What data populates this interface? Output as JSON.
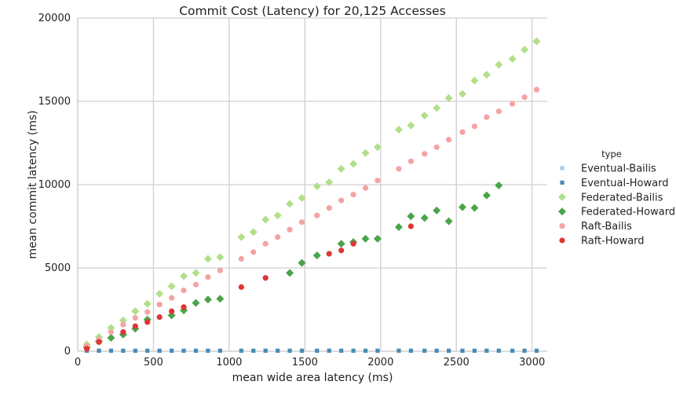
{
  "chart_data": {
    "type": "scatter",
    "title": "Commit Cost (Latency) for 20,125 Accesses",
    "xlabel": "mean wide area latency (ms)",
    "ylabel": "mean commit latency (ms)",
    "xlim": [
      0,
      3100
    ],
    "ylim": [
      0,
      20000
    ],
    "xticks": [
      0,
      500,
      1000,
      1500,
      2000,
      2500,
      3000
    ],
    "yticks": [
      0,
      5000,
      10000,
      15000,
      20000
    ],
    "xtick_labels": [
      "0",
      "500",
      "1000",
      "1500",
      "2000",
      "2500",
      "3000"
    ],
    "ytick_labels": [
      "0",
      "5000",
      "10000",
      "15000",
      "20000"
    ],
    "grid": true,
    "legend_title": "type",
    "legend_position": "right",
    "series": [
      {
        "name": "Eventual-Bailis",
        "color": "#a6cee3",
        "marker": "square",
        "x": [
          60,
          140,
          220,
          300,
          380,
          460,
          540,
          620,
          700,
          780,
          860,
          940,
          1080,
          1160,
          1240,
          1320,
          1400,
          1480,
          1580,
          1660,
          1740,
          1820,
          1900,
          1980,
          2120,
          2200,
          2290,
          2370,
          2450,
          2540,
          2620,
          2700,
          2780,
          2870,
          2950,
          3030
        ],
        "y": [
          30,
          30,
          30,
          30,
          30,
          30,
          30,
          30,
          30,
          30,
          30,
          30,
          30,
          30,
          30,
          30,
          30,
          30,
          30,
          30,
          30,
          30,
          30,
          30,
          30,
          30,
          30,
          30,
          30,
          30,
          30,
          30,
          30,
          30,
          30,
          30
        ]
      },
      {
        "name": "Eventual-Howard",
        "color": "#4a8cb5",
        "marker": "square",
        "x": [
          60,
          140,
          220,
          300,
          380,
          460,
          540,
          620,
          700,
          780,
          860,
          940,
          1080,
          1160,
          1240,
          1320,
          1400,
          1480,
          1580,
          1660,
          1740,
          1820,
          1900,
          1980,
          2120,
          2200,
          2290,
          2370,
          2450,
          2540,
          2620,
          2700,
          2780,
          2870,
          2950,
          3030
        ],
        "y": [
          30,
          30,
          30,
          30,
          30,
          30,
          30,
          30,
          30,
          30,
          30,
          30,
          30,
          30,
          30,
          30,
          30,
          30,
          30,
          30,
          30,
          30,
          30,
          30,
          30,
          30,
          30,
          30,
          30,
          30,
          30,
          30,
          30,
          30,
          30,
          30
        ]
      },
      {
        "name": "Federated-Bailis",
        "color": "#b2df8a",
        "marker": "diamond",
        "x": [
          60,
          140,
          220,
          300,
          380,
          460,
          540,
          620,
          700,
          780,
          860,
          940,
          1080,
          1160,
          1240,
          1320,
          1400,
          1480,
          1580,
          1660,
          1740,
          1820,
          1900,
          1980,
          2120,
          2200,
          2290,
          2370,
          2450,
          2540,
          2620,
          2700,
          2780,
          2870,
          2950,
          3030
        ],
        "y": [
          400,
          850,
          1400,
          1850,
          2400,
          2850,
          3450,
          3900,
          4500,
          4700,
          5550,
          5650,
          6850,
          7150,
          7900,
          8150,
          8850,
          9200,
          9900,
          10150,
          10950,
          11250,
          11900,
          12250,
          13300,
          13550,
          14150,
          14600,
          15200,
          15450,
          16250,
          16600,
          17200,
          17550,
          18100,
          18600
        ]
      },
      {
        "name": "Federated-Howard",
        "color": "#4aa44a",
        "marker": "diamond",
        "x": [
          60,
          140,
          220,
          300,
          380,
          460,
          620,
          700,
          780,
          860,
          940,
          1400,
          1480,
          1580,
          1740,
          1820,
          1900,
          1980,
          2120,
          2200,
          2290,
          2370,
          2450,
          2540,
          2620,
          2700,
          2780
        ],
        "y": [
          250,
          600,
          800,
          1000,
          1350,
          1900,
          2150,
          2450,
          2900,
          3100,
          3150,
          4700,
          5300,
          5750,
          6450,
          6550,
          6750,
          6750,
          7450,
          8100,
          8000,
          8450,
          7800,
          8650,
          8600,
          9350,
          9950
        ]
      },
      {
        "name": "Raft-Bailis",
        "color": "#f4a3a3",
        "marker": "circle",
        "x": [
          60,
          140,
          220,
          300,
          380,
          460,
          540,
          620,
          700,
          780,
          860,
          940,
          1080,
          1160,
          1240,
          1320,
          1400,
          1480,
          1580,
          1660,
          1740,
          1820,
          1900,
          1980,
          2120,
          2200,
          2290,
          2370,
          2450,
          2540,
          2620,
          2700,
          2780,
          2870,
          2950,
          3030
        ],
        "y": [
          300,
          700,
          1150,
          1600,
          2000,
          2350,
          2800,
          3200,
          3650,
          4000,
          4450,
          4850,
          5550,
          5950,
          6450,
          6850,
          7300,
          7750,
          8150,
          8600,
          9050,
          9400,
          9800,
          10250,
          10950,
          11400,
          11850,
          12250,
          12700,
          13150,
          13500,
          14050,
          14400,
          14850,
          15250,
          15700
        ]
      },
      {
        "name": "Raft-Howard",
        "color": "#e03535",
        "marker": "circle",
        "x": [
          60,
          140,
          300,
          380,
          460,
          540,
          620,
          700,
          1080,
          1240,
          1660,
          1740,
          1820,
          2200
        ],
        "y": [
          150,
          550,
          1150,
          1500,
          1750,
          2050,
          2400,
          2650,
          3850,
          4400,
          5850,
          6050,
          6450,
          7500
        ]
      }
    ]
  }
}
